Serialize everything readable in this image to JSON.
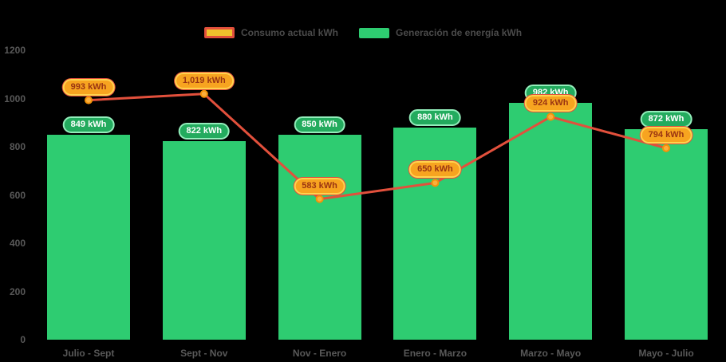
{
  "chart_data": {
    "type": "combo-bar-line",
    "categories": [
      "Julio - Sept",
      "Sept - Nov",
      "Nov - Enero",
      "Enero - Marzo",
      "Marzo - Mayo",
      "Mayo - Julio"
    ],
    "series": [
      {
        "name": "Consumo actual kWh",
        "type": "line",
        "values": [
          993,
          1019,
          583,
          650,
          924,
          794
        ],
        "labels": [
          "993 kWh",
          "1,019 kWh",
          "583 kWh",
          "650 kWh",
          "924 kWh",
          "794 kWh"
        ]
      },
      {
        "name": "Generación de energía kWh",
        "type": "bar",
        "values": [
          849,
          822,
          850,
          880,
          982,
          872
        ],
        "labels": [
          "849 kWh",
          "822 kWh",
          "850 kWh",
          "880 kWh",
          "982 kWh",
          "872 kWh"
        ]
      }
    ],
    "ylim": [
      0,
      1200
    ],
    "yticks": [
      0,
      200,
      400,
      600,
      800,
      1000,
      1200
    ],
    "legend_position": "top",
    "grid": false
  },
  "colors": {
    "background": "#000000",
    "bar": "#2ecc71",
    "bar_label_bg": "#23ab5e",
    "bar_label_border": "#93eebb",
    "bar_label_text": "#ffffff",
    "line": "#e2503c",
    "marker_fill": "#fbaf3c",
    "marker_stroke": "#f39209",
    "line_label_bg": "#f7a420",
    "line_label_border": "#ffd34e",
    "line_label_text": "#9a3412",
    "axis_text": "#595959",
    "legend_text": "#4a4a4a",
    "legend_line_fill": "#f0c02c"
  }
}
